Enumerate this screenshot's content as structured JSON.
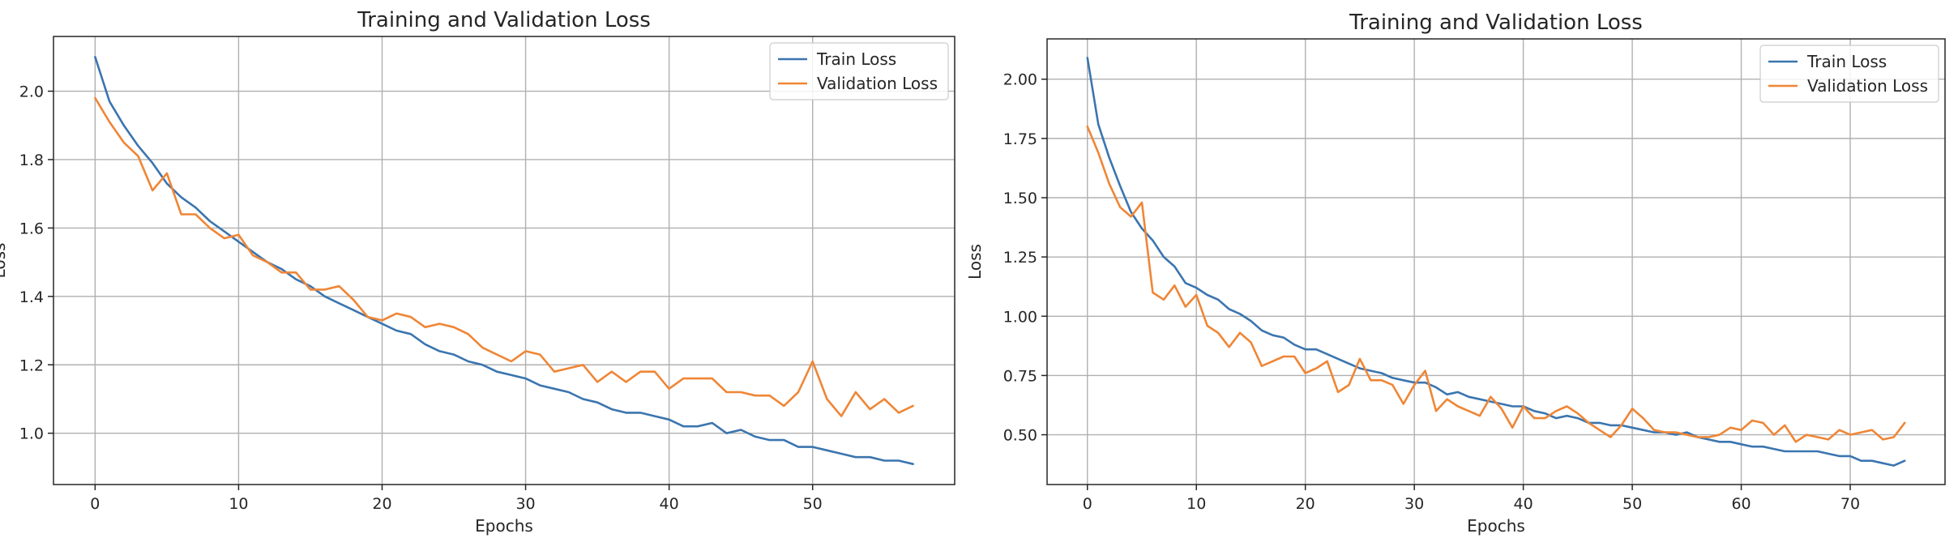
{
  "chart_data": [
    {
      "type": "line",
      "title": "Training and Validation Loss",
      "xlabel": "Epochs",
      "ylabel": "Loss",
      "xlim": [
        -2.9,
        59.9
      ],
      "ylim": [
        0.85,
        2.16
      ],
      "xticks": [
        0,
        10,
        20,
        30,
        40,
        50
      ],
      "xtick_labels": [
        "0",
        "10",
        "20",
        "30",
        "40",
        "50"
      ],
      "yticks": [
        1.0,
        1.2,
        1.4,
        1.6,
        1.8,
        2.0
      ],
      "ytick_labels": [
        "1.0",
        "1.2",
        "1.4",
        "1.6",
        "1.8",
        "2.0"
      ],
      "grid": true,
      "legend_position": "top-right",
      "series": [
        {
          "name": "Train Loss",
          "color": "#3b75af",
          "x": [
            0,
            1,
            2,
            3,
            4,
            5,
            6,
            7,
            8,
            9,
            10,
            11,
            12,
            13,
            14,
            15,
            16,
            17,
            18,
            19,
            20,
            21,
            22,
            23,
            24,
            25,
            26,
            27,
            28,
            29,
            30,
            31,
            32,
            33,
            34,
            35,
            36,
            37,
            38,
            39,
            40,
            41,
            42,
            43,
            44,
            45,
            46,
            47,
            48,
            49,
            50,
            51,
            52,
            53,
            54,
            55,
            56,
            57
          ],
          "values": [
            2.1,
            1.97,
            1.9,
            1.84,
            1.79,
            1.73,
            1.69,
            1.66,
            1.62,
            1.59,
            1.56,
            1.53,
            1.5,
            1.48,
            1.45,
            1.43,
            1.4,
            1.38,
            1.36,
            1.34,
            1.32,
            1.3,
            1.29,
            1.26,
            1.24,
            1.23,
            1.21,
            1.2,
            1.18,
            1.17,
            1.16,
            1.14,
            1.13,
            1.12,
            1.1,
            1.09,
            1.07,
            1.06,
            1.06,
            1.05,
            1.04,
            1.02,
            1.02,
            1.03,
            1.0,
            1.01,
            0.99,
            0.98,
            0.98,
            0.96,
            0.96,
            0.95,
            0.94,
            0.93,
            0.93,
            0.92,
            0.92,
            0.91
          ]
        },
        {
          "name": "Validation Loss",
          "color": "#ef8636",
          "x": [
            0,
            1,
            2,
            3,
            4,
            5,
            6,
            7,
            8,
            9,
            10,
            11,
            12,
            13,
            14,
            15,
            16,
            17,
            18,
            19,
            20,
            21,
            22,
            23,
            24,
            25,
            26,
            27,
            28,
            29,
            30,
            31,
            32,
            33,
            34,
            35,
            36,
            37,
            38,
            39,
            40,
            41,
            42,
            43,
            44,
            45,
            46,
            47,
            48,
            49,
            50,
            51,
            52,
            53,
            54,
            55,
            56,
            57
          ],
          "values": [
            1.98,
            1.91,
            1.85,
            1.81,
            1.71,
            1.76,
            1.64,
            1.64,
            1.6,
            1.57,
            1.58,
            1.52,
            1.5,
            1.47,
            1.47,
            1.42,
            1.42,
            1.43,
            1.39,
            1.34,
            1.33,
            1.35,
            1.34,
            1.31,
            1.32,
            1.31,
            1.29,
            1.25,
            1.23,
            1.21,
            1.24,
            1.23,
            1.18,
            1.19,
            1.2,
            1.15,
            1.18,
            1.15,
            1.18,
            1.18,
            1.13,
            1.16,
            1.16,
            1.16,
            1.12,
            1.12,
            1.11,
            1.11,
            1.08,
            1.12,
            1.21,
            1.1,
            1.05,
            1.12,
            1.07,
            1.1,
            1.06,
            1.08
          ]
        }
      ]
    },
    {
      "type": "line",
      "title": "Training and Validation Loss",
      "xlabel": "Epochs",
      "ylabel": "Loss",
      "xlim": [
        -3.7,
        78.7
      ],
      "ylim": [
        0.29,
        2.17
      ],
      "xticks": [
        0,
        10,
        20,
        30,
        40,
        50,
        60,
        70
      ],
      "xtick_labels": [
        "0",
        "10",
        "20",
        "30",
        "40",
        "50",
        "60",
        "70"
      ],
      "yticks": [
        0.5,
        0.75,
        1.0,
        1.25,
        1.5,
        1.75,
        2.0
      ],
      "ytick_labels": [
        "0.50",
        "0.75",
        "1.00",
        "1.25",
        "1.50",
        "1.75",
        "2.00"
      ],
      "grid": true,
      "legend_position": "top-right",
      "series": [
        {
          "name": "Train Loss",
          "color": "#3b75af",
          "x": [
            0,
            1,
            2,
            3,
            4,
            5,
            6,
            7,
            8,
            9,
            10,
            11,
            12,
            13,
            14,
            15,
            16,
            17,
            18,
            19,
            20,
            21,
            22,
            23,
            24,
            25,
            26,
            27,
            28,
            29,
            30,
            31,
            32,
            33,
            34,
            35,
            36,
            37,
            38,
            39,
            40,
            41,
            42,
            43,
            44,
            45,
            46,
            47,
            48,
            49,
            50,
            51,
            52,
            53,
            54,
            55,
            56,
            57,
            58,
            59,
            60,
            61,
            62,
            63,
            64,
            65,
            66,
            67,
            68,
            69,
            70,
            71,
            72,
            73,
            74,
            75
          ],
          "values": [
            2.09,
            1.81,
            1.67,
            1.55,
            1.44,
            1.37,
            1.32,
            1.25,
            1.21,
            1.14,
            1.12,
            1.09,
            1.07,
            1.03,
            1.01,
            0.98,
            0.94,
            0.92,
            0.91,
            0.88,
            0.86,
            0.86,
            0.84,
            0.82,
            0.8,
            0.78,
            0.77,
            0.76,
            0.74,
            0.73,
            0.72,
            0.72,
            0.7,
            0.67,
            0.68,
            0.66,
            0.65,
            0.64,
            0.63,
            0.62,
            0.62,
            0.6,
            0.59,
            0.57,
            0.58,
            0.57,
            0.55,
            0.55,
            0.54,
            0.54,
            0.53,
            0.52,
            0.51,
            0.51,
            0.5,
            0.51,
            0.49,
            0.48,
            0.47,
            0.47,
            0.46,
            0.45,
            0.45,
            0.44,
            0.43,
            0.43,
            0.43,
            0.43,
            0.42,
            0.41,
            0.41,
            0.39,
            0.39,
            0.38,
            0.37,
            0.39
          ]
        },
        {
          "name": "Validation Loss",
          "color": "#ef8636",
          "x": [
            0,
            1,
            2,
            3,
            4,
            5,
            6,
            7,
            8,
            9,
            10,
            11,
            12,
            13,
            14,
            15,
            16,
            17,
            18,
            19,
            20,
            21,
            22,
            23,
            24,
            25,
            26,
            27,
            28,
            29,
            30,
            31,
            32,
            33,
            34,
            35,
            36,
            37,
            38,
            39,
            40,
            41,
            42,
            43,
            44,
            45,
            46,
            47,
            48,
            49,
            50,
            51,
            52,
            53,
            54,
            55,
            56,
            57,
            58,
            59,
            60,
            61,
            62,
            63,
            64,
            65,
            66,
            67,
            68,
            69,
            70,
            71,
            72,
            73,
            74,
            75
          ],
          "values": [
            1.8,
            1.69,
            1.56,
            1.46,
            1.42,
            1.48,
            1.1,
            1.07,
            1.13,
            1.04,
            1.09,
            0.96,
            0.93,
            0.87,
            0.93,
            0.89,
            0.79,
            0.81,
            0.83,
            0.83,
            0.76,
            0.78,
            0.81,
            0.68,
            0.71,
            0.82,
            0.73,
            0.73,
            0.71,
            0.63,
            0.71,
            0.77,
            0.6,
            0.65,
            0.62,
            0.6,
            0.58,
            0.66,
            0.61,
            0.53,
            0.62,
            0.57,
            0.57,
            0.6,
            0.62,
            0.59,
            0.55,
            0.52,
            0.49,
            0.54,
            0.61,
            0.57,
            0.52,
            0.51,
            0.51,
            0.5,
            0.49,
            0.49,
            0.5,
            0.53,
            0.52,
            0.56,
            0.55,
            0.5,
            0.54,
            0.47,
            0.5,
            0.49,
            0.48,
            0.52,
            0.5,
            0.51,
            0.52,
            0.48,
            0.49,
            0.55
          ]
        }
      ]
    }
  ]
}
